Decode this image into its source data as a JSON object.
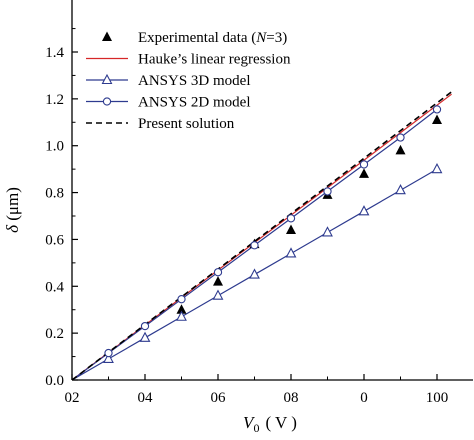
{
  "chart_data": {
    "type": "line",
    "title": "",
    "xlabel": "V₀ ( V )",
    "xlabel_main": "V",
    "xlabel_sub": "0",
    "xlabel_unit": "( V )",
    "ylabel": "δ (μm)",
    "xlim": [
      20,
      107
    ],
    "ylim": [
      0,
      1.5
    ],
    "x_ticks": [
      {
        "value": 20,
        "label": "02"
      },
      {
        "value": 40,
        "label": "04"
      },
      {
        "value": 60,
        "label": "06"
      },
      {
        "value": 80,
        "label": "08"
      },
      {
        "value": 100,
        "label": "0"
      },
      {
        "value": 120,
        "label": "100"
      }
    ],
    "x_scale_note": "tick labels as printed",
    "y_ticks": [
      {
        "value": 0.0,
        "label": "0.0"
      },
      {
        "value": 0.2,
        "label": "0.2"
      },
      {
        "value": 0.4,
        "label": "0.4"
      },
      {
        "value": 0.6,
        "label": "0.6"
      },
      {
        "value": 0.8,
        "label": "0.8"
      },
      {
        "value": 1.0,
        "label": "1.0"
      },
      {
        "value": 1.2,
        "label": "1.2"
      },
      {
        "value": 1.4,
        "label": "1.4"
      }
    ],
    "legend_position": "top-left",
    "series": [
      {
        "name": "Experimental data (N=3)",
        "legend_parts": [
          "Experimental data (",
          "N",
          "=3)"
        ],
        "kind": "markers",
        "marker": "filled-triangle",
        "color": "#000000",
        "x": [
          50,
          60,
          70,
          80,
          90,
          100,
          110,
          120
        ],
        "y": [
          0.3,
          0.42,
          0.58,
          0.64,
          0.79,
          0.88,
          0.98,
          1.11
        ]
      },
      {
        "name": "Hauke’s linear  regression",
        "legend_parts": [
          "Hauke’s linear  regression"
        ],
        "kind": "line",
        "color": "#d62728",
        "x": [
          20,
          124
        ],
        "y": [
          0.0,
          1.22
        ]
      },
      {
        "name": "ANSYS  3D model",
        "legend_parts": [
          "ANSYS  3D model"
        ],
        "kind": "line-markers",
        "marker": "open-triangle",
        "color": "#2e3b8f",
        "x": [
          20,
          30,
          40,
          50,
          60,
          70,
          80,
          90,
          100,
          110,
          120
        ],
        "y": [
          0.0,
          0.09,
          0.18,
          0.27,
          0.36,
          0.45,
          0.54,
          0.63,
          0.72,
          0.81,
          0.9
        ]
      },
      {
        "name": "ANSYS  2D model",
        "legend_parts": [
          "ANSYS  2D model"
        ],
        "kind": "line-markers",
        "marker": "open-circle",
        "color": "#2e3b8f",
        "x": [
          20,
          30,
          40,
          50,
          60,
          70,
          80,
          90,
          100,
          110,
          120
        ],
        "y": [
          0.0,
          0.115,
          0.23,
          0.345,
          0.46,
          0.575,
          0.69,
          0.805,
          0.92,
          1.035,
          1.155
        ]
      },
      {
        "name": "Present solution",
        "legend_parts": [
          "Present solution"
        ],
        "kind": "dashed-line",
        "color": "#000000",
        "x": [
          20,
          124
        ],
        "y": [
          0.0,
          1.23
        ]
      }
    ]
  }
}
